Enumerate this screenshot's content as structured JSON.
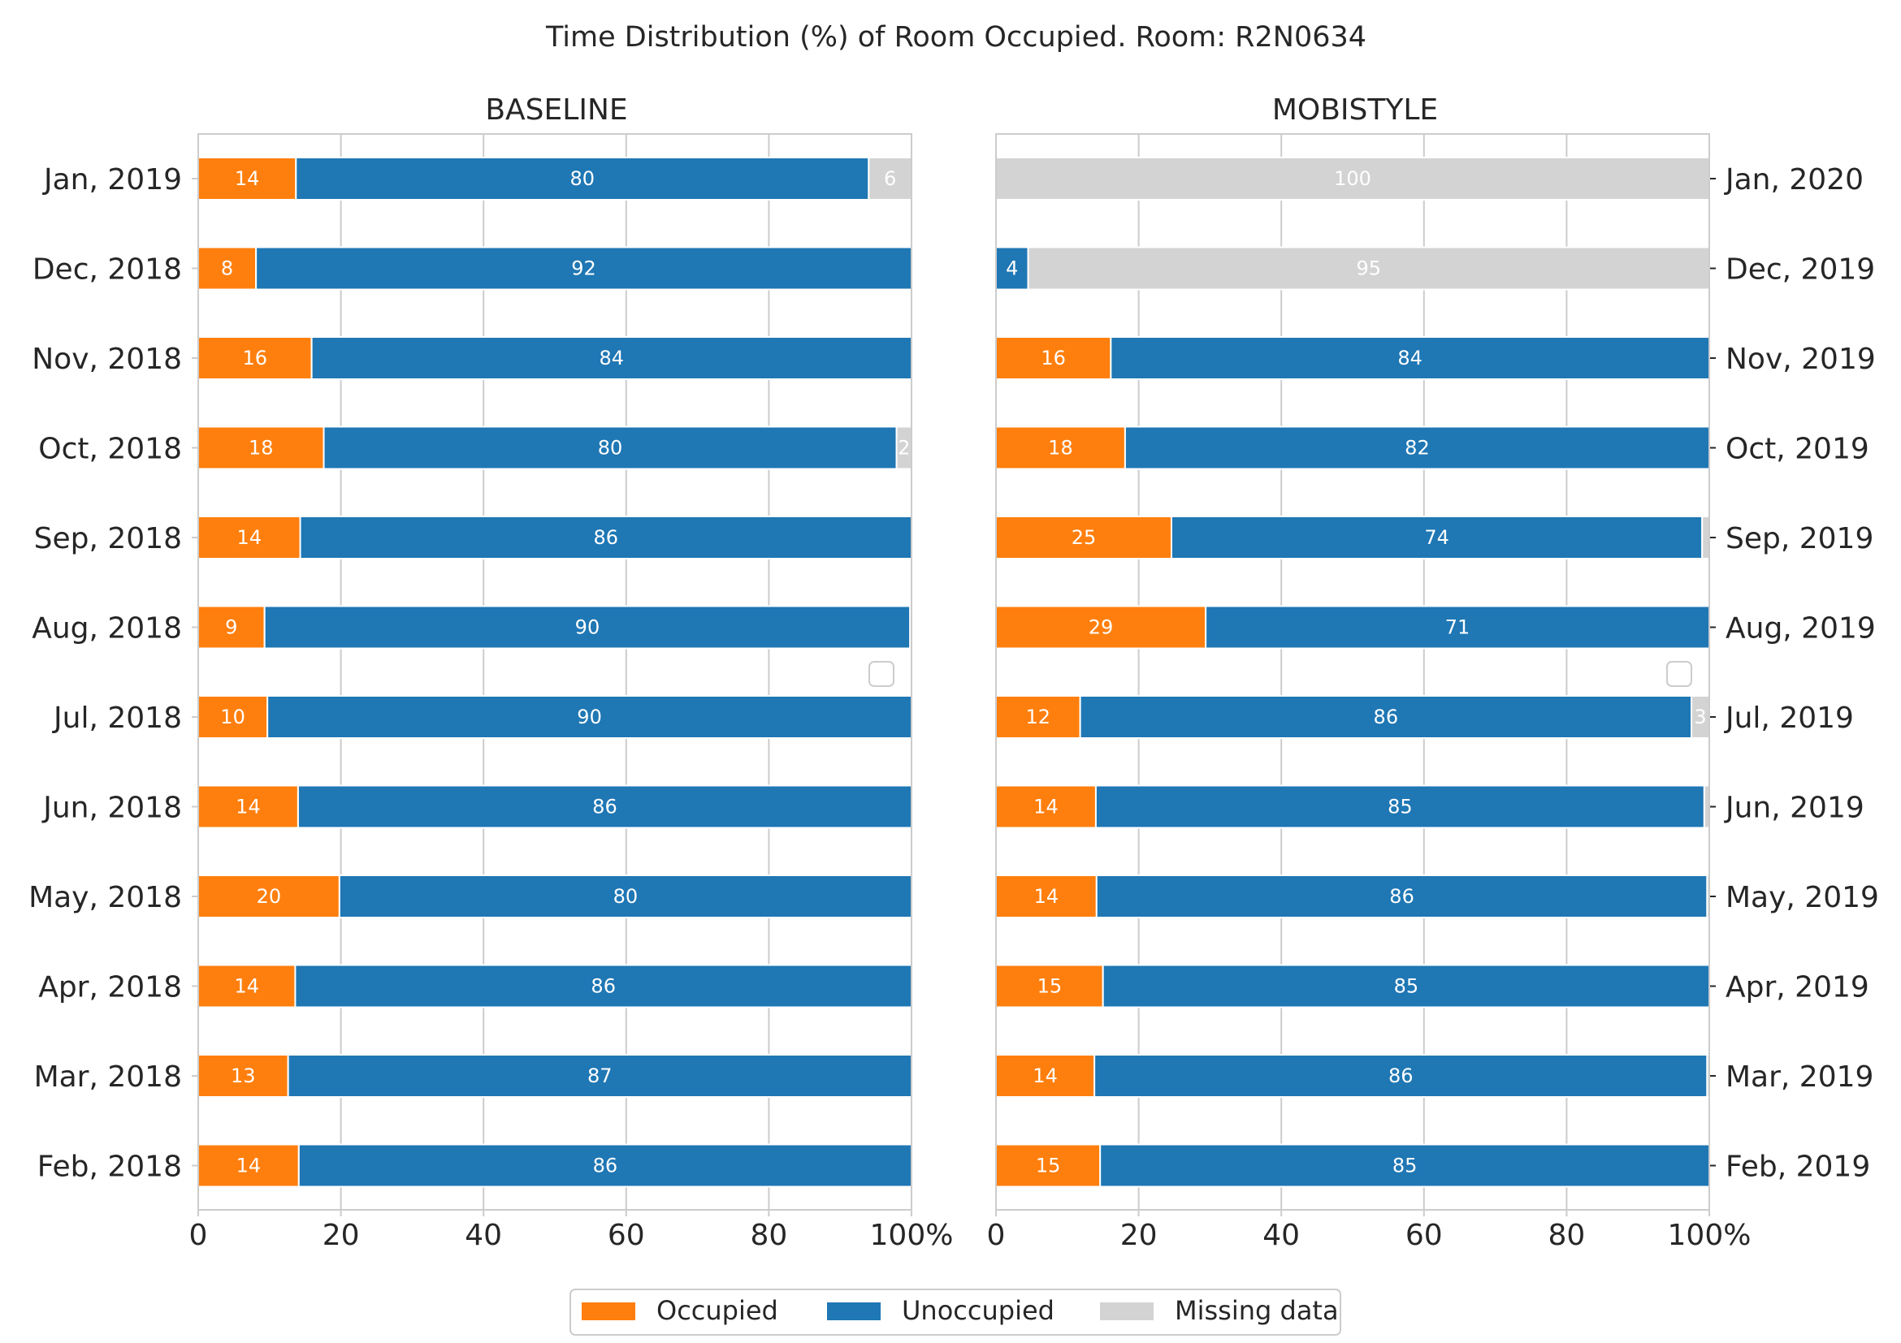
{
  "chart_data": {
    "type": "bar",
    "orientation": "horizontal",
    "stacked": true,
    "title": "Time Distribution (%) of Room Occupied. Room: R2N0634",
    "xlim": [
      0,
      100
    ],
    "xticks": [
      "0",
      "20",
      "40",
      "60",
      "80",
      "100%"
    ],
    "grid": true,
    "legend": {
      "placement": "bottom-center",
      "entries": [
        "Occupied",
        "Unoccupied",
        "Missing data"
      ]
    },
    "colors": {
      "Occupied": "#ff7f0e",
      "Unoccupied": "#1f77b4",
      "Missing data": "#d3d3d3"
    },
    "panels": [
      {
        "title": "BASELINE",
        "tick_side": "left",
        "categories": [
          "Jan, 2019",
          "Dec, 2018",
          "Nov, 2018",
          "Oct, 2018",
          "Sep, 2018",
          "Aug, 2018",
          "Jul, 2018",
          "Jun, 2018",
          "May, 2018",
          "Apr, 2018",
          "Mar, 2018",
          "Feb, 2018"
        ],
        "series": [
          {
            "name": "Occupied",
            "values": [
              13.7,
              8.1,
              15.9,
              17.6,
              14.3,
              9.3,
              9.7,
              14.0,
              19.8,
              13.6,
              12.6,
              14.1
            ],
            "labels": [
              "14",
              "8",
              "16",
              "18",
              "14",
              "9",
              "10",
              "14",
              "20",
              "14",
              "13",
              "14"
            ]
          },
          {
            "name": "Unoccupied",
            "values": [
              80.3,
              91.9,
              84.1,
              80.3,
              85.7,
              90.5,
              90.3,
              86.0,
              80.2,
              86.4,
              87.4,
              85.9
            ],
            "labels": [
              "80",
              "92",
              "84",
              "80",
              "86",
              "90",
              "90",
              "86",
              "80",
              "86",
              "87",
              "86"
            ]
          },
          {
            "name": "Missing data",
            "values": [
              6.0,
              0,
              0,
              2.1,
              0,
              0.2,
              0,
              0,
              0,
              0,
              0,
              0
            ],
            "labels": [
              "6",
              "",
              "",
              "2",
              "",
              "",
              "",
              "",
              "",
              "",
              "",
              ""
            ]
          }
        ]
      },
      {
        "title": "MOBISTYLE",
        "tick_side": "right",
        "categories": [
          "Jan, 2020",
          "Dec, 2019",
          "Nov, 2019",
          "Oct, 2019",
          "Sep, 2019",
          "Aug, 2019",
          "Jul, 2019",
          "Jun, 2019",
          "May, 2019",
          "Apr, 2019",
          "Mar, 2019",
          "Feb, 2019"
        ],
        "series": [
          {
            "name": "Occupied",
            "values": [
              0,
              0,
              16.1,
              18.1,
              24.6,
              29.4,
              11.8,
              14.0,
              14.1,
              15.0,
              13.8,
              14.6
            ],
            "labels": [
              "",
              "",
              "16",
              "18",
              "25",
              "29",
              "12",
              "14",
              "14",
              "15",
              "14",
              "15"
            ]
          },
          {
            "name": "Unoccupied",
            "values": [
              0,
              4.5,
              83.9,
              81.9,
              74.4,
              70.6,
              85.7,
              85.3,
              85.6,
              85.0,
              85.9,
              85.4
            ],
            "labels": [
              "",
              "4",
              "84",
              "82",
              "74",
              "71",
              "86",
              "85",
              "86",
              "85",
              "86",
              "85"
            ]
          },
          {
            "name": "Missing data",
            "values": [
              100,
              95.5,
              0,
              0,
              1.0,
              0,
              2.5,
              0.7,
              0.3,
              0,
              0.3,
              0
            ],
            "labels": [
              "100",
              "95",
              "",
              "",
              "",
              "",
              "3",
              "",
              "",
              "",
              "",
              ""
            ]
          }
        ]
      }
    ]
  }
}
